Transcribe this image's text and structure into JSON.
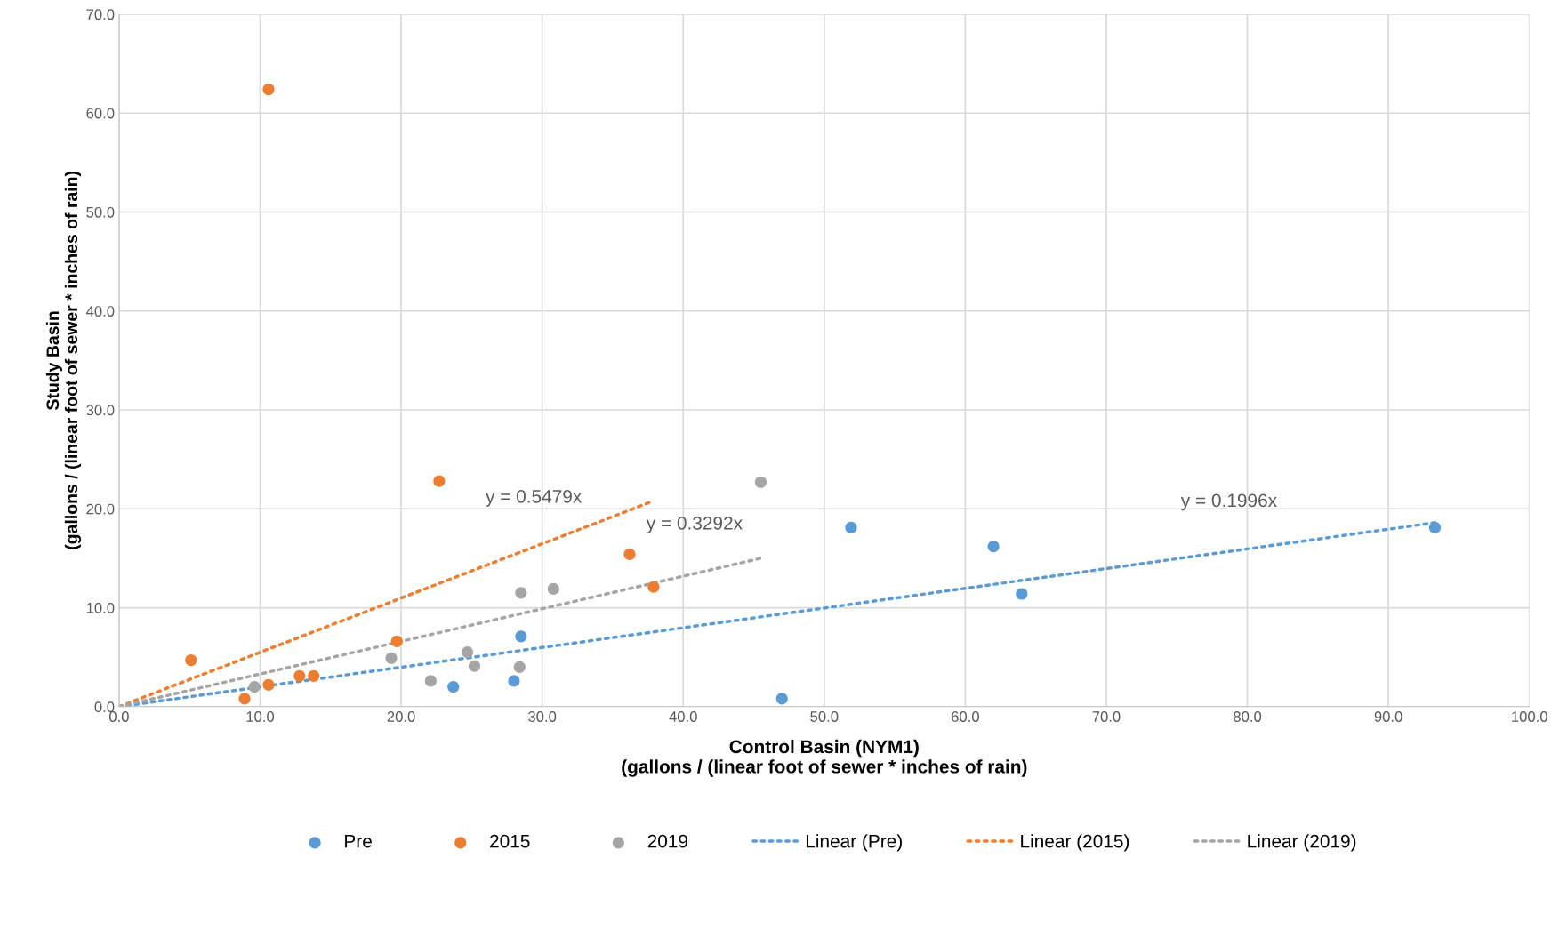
{
  "chart_data": {
    "type": "scatter",
    "xlabel": "Control Basin (NYM1)\n(gallons / (linear foot of sewer * inches of rain)",
    "ylabel": "Study Basin\n(gallons / (linear foot of sewer * inches of rain)",
    "xlim": [
      0,
      100
    ],
    "xticks": [
      {
        "value": 0,
        "label": "0.0"
      },
      {
        "value": 10,
        "label": "10.0"
      },
      {
        "value": 20,
        "label": "20.0"
      },
      {
        "value": 30,
        "label": "30.0"
      },
      {
        "value": 40,
        "label": "40.0"
      },
      {
        "value": 50,
        "label": "50.0"
      },
      {
        "value": 60,
        "label": "60.0"
      },
      {
        "value": 70,
        "label": "70.0"
      },
      {
        "value": 80,
        "label": "80.0"
      },
      {
        "value": 90,
        "label": "90.0"
      },
      {
        "value": 100,
        "label": "100.0"
      }
    ],
    "ylim": [
      0,
      70
    ],
    "yticks": [
      {
        "value": 0,
        "label": "0.0"
      },
      {
        "value": 10,
        "label": "10.0"
      },
      {
        "value": 20,
        "label": "20.0"
      },
      {
        "value": 30,
        "label": "30.0"
      },
      {
        "value": 40,
        "label": "40.0"
      },
      {
        "value": 50,
        "label": "50.0"
      },
      {
        "value": 60,
        "label": "60.0"
      },
      {
        "value": 70,
        "label": "70.0"
      }
    ],
    "grid": true,
    "legend": "bottom",
    "series": [
      {
        "name": "Pre",
        "marker": "circle",
        "color": "#5b9bd5",
        "x": [
          23.7,
          28.0,
          28.5,
          47.0,
          51.9,
          62.0,
          64.0,
          93.3
        ],
        "values": [
          2.0,
          2.6,
          7.1,
          0.8,
          18.1,
          16.2,
          11.4,
          18.1
        ]
      },
      {
        "name": "2015",
        "marker": "circle",
        "color": "#ed7d31",
        "x": [
          5.1,
          8.9,
          10.6,
          10.6,
          12.8,
          13.8,
          19.7,
          22.7,
          36.2,
          37.9
        ],
        "values": [
          4.7,
          0.8,
          62.4,
          2.2,
          3.1,
          3.1,
          6.6,
          22.8,
          15.4,
          12.1
        ]
      },
      {
        "name": "2019",
        "marker": "circle",
        "color": "#a5a5a5",
        "x": [
          9.6,
          19.3,
          22.1,
          24.7,
          25.2,
          28.4,
          28.5,
          30.8,
          45.5
        ],
        "values": [
          2.0,
          4.9,
          2.6,
          5.5,
          4.1,
          4.0,
          11.5,
          11.9,
          22.7
        ]
      },
      {
        "name": "Linear (Pre)",
        "type": "line",
        "line_style": "dotted",
        "color": "#5b9bd5",
        "x": [
          0,
          93.3
        ],
        "values": [
          0,
          18.6
        ]
      },
      {
        "name": "Linear (2015)",
        "type": "line",
        "line_style": "dotted",
        "color": "#ed7d31",
        "x": [
          0,
          37.9
        ],
        "values": [
          0,
          20.8
        ]
      },
      {
        "name": "Linear (2019)",
        "type": "line",
        "line_style": "dotted",
        "color": "#a5a5a5",
        "x": [
          0,
          45.5
        ],
        "values": [
          0,
          15.0
        ]
      }
    ],
    "annotations": [
      {
        "text": "y = 0.5479x",
        "x": 29.4,
        "y": 16.1
      },
      {
        "text": "y = 0.3292x",
        "x": 40.8,
        "y": 13.4
      },
      {
        "text": "y = 0.1996x",
        "x": 78.7,
        "y": 15.7
      }
    ]
  }
}
